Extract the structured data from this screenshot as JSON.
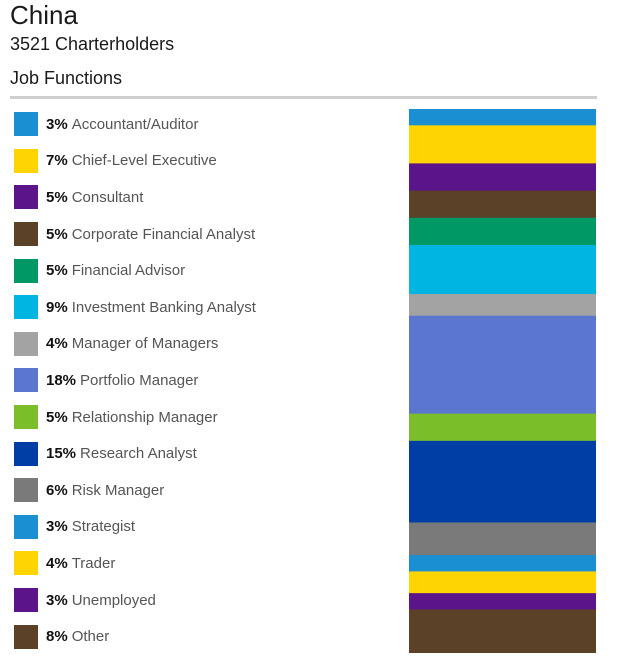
{
  "header": {
    "title": "China",
    "subtitle": "3521 Charterholders",
    "section": "Job Functions"
  },
  "chart_data": {
    "type": "bar",
    "stacked": true,
    "orientation": "vertical",
    "title": "China",
    "subtitle": "3521 Charterholders",
    "section_label": "Job Functions",
    "unit": "%",
    "categories": [
      "Accountant/Auditor",
      "Chief-Level Executive",
      "Consultant",
      "Corporate Financial Analyst",
      "Financial Advisor",
      "Investment Banking Analyst",
      "Manager of Managers",
      "Portfolio Manager",
      "Relationship Manager",
      "Research Analyst",
      "Risk Manager",
      "Strategist",
      "Trader",
      "Unemployed",
      "Other"
    ],
    "values": [
      3,
      7,
      5,
      5,
      5,
      9,
      4,
      18,
      5,
      15,
      6,
      3,
      4,
      3,
      8
    ],
    "labels": [
      "3%",
      "7%",
      "5%",
      "5%",
      "5%",
      "9%",
      "4%",
      "18%",
      "5%",
      "15%",
      "6%",
      "3%",
      "4%",
      "3%",
      "8%"
    ],
    "colors": [
      "#1a8fd1",
      "#ffd400",
      "#5b1489",
      "#5a4128",
      "#009966",
      "#00b5e2",
      "#a3a3a3",
      "#5b76cf",
      "#7abf2a",
      "#003da5",
      "#7a7a7a",
      "#1a8fd1",
      "#ffd400",
      "#5b1489",
      "#5a4128"
    ],
    "legend_position": "left"
  }
}
